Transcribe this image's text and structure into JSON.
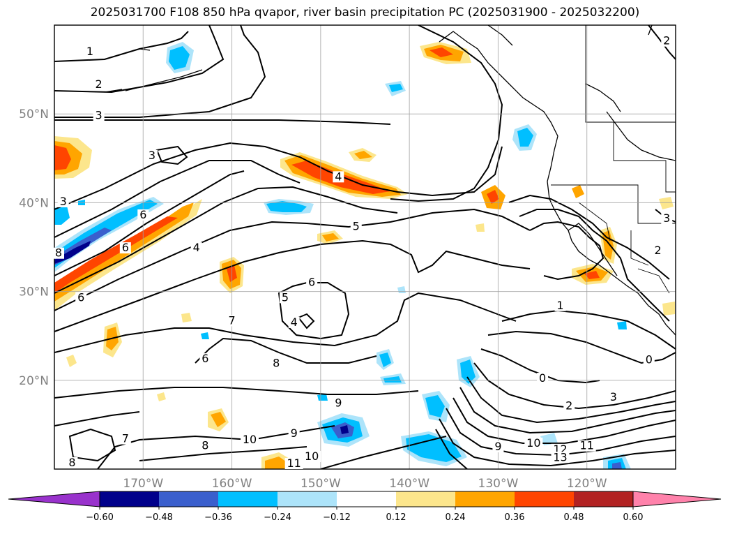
{
  "title": "2025031700 F108 850 hPa qvapor, river basin precipitation PC (2025031900 - 2025032200)",
  "map": {
    "projection": "cylindrical lat-lon",
    "lon_range": [
      -180,
      -110
    ],
    "lat_range": [
      10,
      60
    ],
    "gridlines": true,
    "lat_labels": [
      {
        "text": "50°N",
        "lat": 50
      },
      {
        "text": "40°N",
        "lat": 40
      },
      {
        "text": "30°N",
        "lat": 30
      },
      {
        "text": "20°N",
        "lat": 20
      }
    ],
    "lon_labels": [
      {
        "text": "170°W",
        "lon": -170
      },
      {
        "text": "160°W",
        "lon": -160
      },
      {
        "text": "150°W",
        "lon": -150
      },
      {
        "text": "140°W",
        "lon": -140
      },
      {
        "text": "130°W",
        "lon": -130
      },
      {
        "text": "120°W",
        "lon": -120
      }
    ],
    "contour_labels": [
      {
        "text": "1",
        "lon": -176,
        "lat": 56.7
      },
      {
        "text": "2",
        "lon": -175,
        "lat": 53.0
      },
      {
        "text": "3",
        "lon": -175,
        "lat": 49.5
      },
      {
        "text": "3",
        "lon": -169,
        "lat": 45.0
      },
      {
        "text": "3",
        "lon": -179,
        "lat": 39.8
      },
      {
        "text": "4",
        "lon": -148,
        "lat": 42.6
      },
      {
        "text": "4",
        "lon": -164,
        "lat": 34.6
      },
      {
        "text": "5",
        "lon": -146,
        "lat": 37.0
      },
      {
        "text": "6",
        "lon": -170,
        "lat": 38.3
      },
      {
        "text": "6",
        "lon": -172,
        "lat": 34.6
      },
      {
        "text": "6",
        "lon": -177,
        "lat": 29.0
      },
      {
        "text": "6",
        "lon": -151,
        "lat": 30.7
      },
      {
        "text": "6",
        "lon": -163,
        "lat": 22.1
      },
      {
        "text": "5",
        "lon": -154,
        "lat": 29.0
      },
      {
        "text": "4",
        "lon": -153,
        "lat": 26.2
      },
      {
        "text": "7",
        "lon": -160,
        "lat": 26.4
      },
      {
        "text": "8",
        "lon": -182,
        "lat": 34.0
      },
      {
        "text": "8",
        "lon": -155,
        "lat": 21.6
      },
      {
        "text": "8",
        "lon": -163,
        "lat": 12.3
      },
      {
        "text": "8",
        "lon": -178,
        "lat": 10.4
      },
      {
        "text": "7",
        "lon": -172,
        "lat": 13.1
      },
      {
        "text": "9",
        "lon": -148,
        "lat": 17.1
      },
      {
        "text": "9",
        "lon": -153,
        "lat": 13.7
      },
      {
        "text": "10",
        "lon": -158,
        "lat": 13.0
      },
      {
        "text": "10",
        "lon": -151,
        "lat": 11.1
      },
      {
        "text": "11",
        "lon": -153,
        "lat": 10.2
      },
      {
        "text": "1",
        "lon": -123,
        "lat": 28.1
      },
      {
        "text": "0",
        "lon": -125,
        "lat": 19.9
      },
      {
        "text": "0",
        "lon": -113,
        "lat": 22.0
      },
      {
        "text": "2",
        "lon": -122,
        "lat": 16.8
      },
      {
        "text": "3",
        "lon": -117,
        "lat": 17.8
      },
      {
        "text": "9",
        "lon": -130,
        "lat": 12.2
      },
      {
        "text": "10",
        "lon": -126,
        "lat": 12.6
      },
      {
        "text": "12",
        "lon": -123,
        "lat": 11.9
      },
      {
        "text": "13",
        "lon": -123,
        "lat": 11.0
      },
      {
        "text": "11",
        "lon": -120,
        "lat": 12.3
      },
      {
        "text": "2",
        "lon": -111,
        "lat": 57.9
      },
      {
        "text": "3",
        "lon": -111,
        "lat": 37.9
      },
      {
        "text": "2",
        "lon": -112,
        "lat": 34.3
      }
    ]
  },
  "colorbar": {
    "extend": "both",
    "tick_labels": [
      "−0.60",
      "−0.48",
      "−0.36",
      "−0.24",
      "−0.12",
      "0.12",
      "0.24",
      "0.36",
      "0.48",
      "0.60"
    ],
    "colors": {
      "under": "#9932cc",
      "bins": [
        "#00008b",
        "#3a5fcd",
        "#00bfff",
        "#ade4fa",
        "#ffffff",
        "#fce68c",
        "#ffa500",
        "#ff4500",
        "#b22222"
      ],
      "over": "#ff82ab"
    }
  }
}
